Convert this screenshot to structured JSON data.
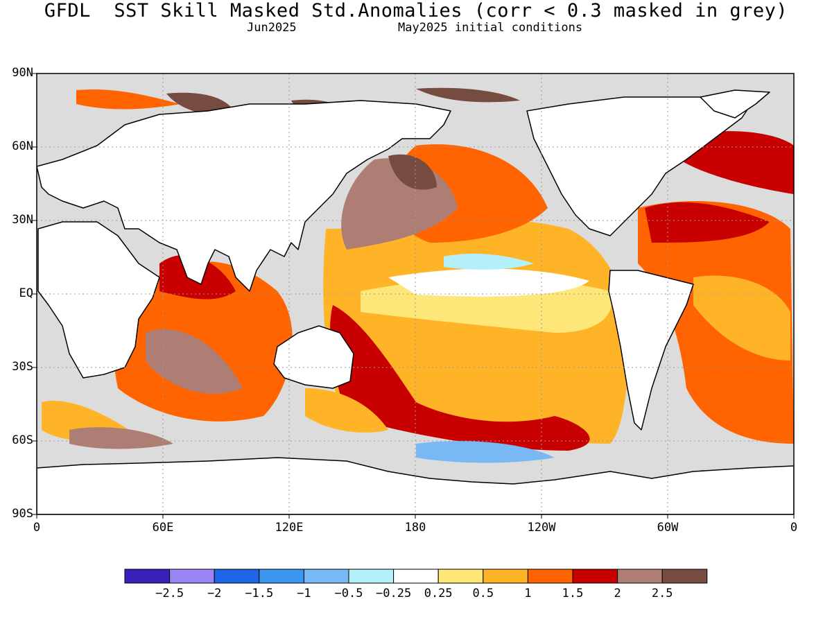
{
  "title": "GFDL  SST Skill Masked Std.Anomalies (corr < 0.3 masked in grey)",
  "subtitle_left": "Jun2025",
  "subtitle_right": "May2025 initial conditions",
  "lat_labels": [
    "90N",
    "60N",
    "30N",
    "EQ",
    "30S",
    "60S",
    "90S"
  ],
  "lon_labels": [
    "0",
    "60E",
    "120E",
    "180",
    "120W",
    "60W",
    "0"
  ],
  "colorbar": {
    "colors": [
      "#3a1fb8",
      "#9b85f5",
      "#1e64e6",
      "#3c96f0",
      "#78b9f5",
      "#b4f0fa",
      "#ffffff",
      "#ffe678",
      "#ffb428",
      "#ff6400",
      "#c80000",
      "#ae7e74",
      "#764c40"
    ],
    "labels": [
      "-2.5",
      "-2",
      "-1.5",
      "-1",
      "-0.5",
      "-0.25",
      "0.25",
      "0.5",
      "1",
      "1.5",
      "2",
      "2.5"
    ]
  },
  "colors": {
    "mask_grey": "#dcdcdc",
    "land": "#ffffff",
    "coastline": "#000000"
  }
}
